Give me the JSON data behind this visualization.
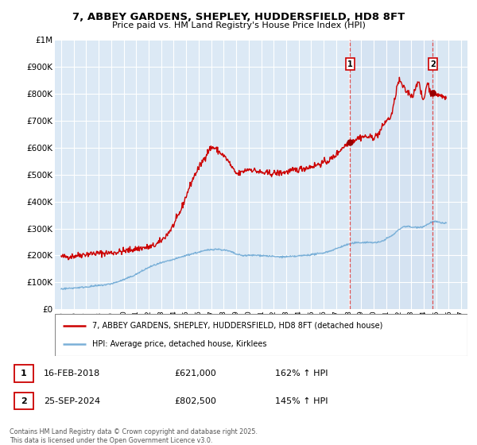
{
  "title": "7, ABBEY GARDENS, SHEPLEY, HUDDERSFIELD, HD8 8FT",
  "subtitle": "Price paid vs. HM Land Registry's House Price Index (HPI)",
  "background_color": "#ffffff",
  "plot_bg_color": "#dce9f5",
  "grid_color": "#c8d8ee",
  "shade_color": "#c8d8ee",
  "red_line_color": "#cc0000",
  "blue_line_color": "#7ab0d8",
  "red_dashed_color": "#e05050",
  "point1_date_x": 2018.12,
  "point1_value": 621000,
  "point2_date_x": 2024.73,
  "point2_value": 802500,
  "legend_red_label": "7, ABBEY GARDENS, SHEPLEY, HUDDERSFIELD, HD8 8FT (detached house)",
  "legend_blue_label": "HPI: Average price, detached house, Kirklees",
  "table_row1": [
    "1",
    "16-FEB-2018",
    "£621,000",
    "162% ↑ HPI"
  ],
  "table_row2": [
    "2",
    "25-SEP-2024",
    "£802,500",
    "145% ↑ HPI"
  ],
  "copyright": "Contains HM Land Registry data © Crown copyright and database right 2025.\nThis data is licensed under the Open Government Licence v3.0.",
  "xmin": 1994.5,
  "xmax": 2027.5,
  "ymin": 0,
  "ymax": 1000000,
  "yticks": [
    0,
    100000,
    200000,
    300000,
    400000,
    500000,
    600000,
    700000,
    800000,
    900000,
    1000000
  ],
  "ytick_labels": [
    "£0",
    "£100K",
    "£200K",
    "£300K",
    "£400K",
    "£500K",
    "£600K",
    "£700K",
    "£800K",
    "£900K",
    "£1M"
  ],
  "xticks": [
    1995,
    1996,
    1997,
    1998,
    1999,
    2000,
    2001,
    2002,
    2003,
    2004,
    2005,
    2006,
    2007,
    2008,
    2009,
    2010,
    2011,
    2012,
    2013,
    2014,
    2015,
    2016,
    2017,
    2018,
    2019,
    2020,
    2021,
    2022,
    2023,
    2024,
    2025,
    2026,
    2027
  ]
}
